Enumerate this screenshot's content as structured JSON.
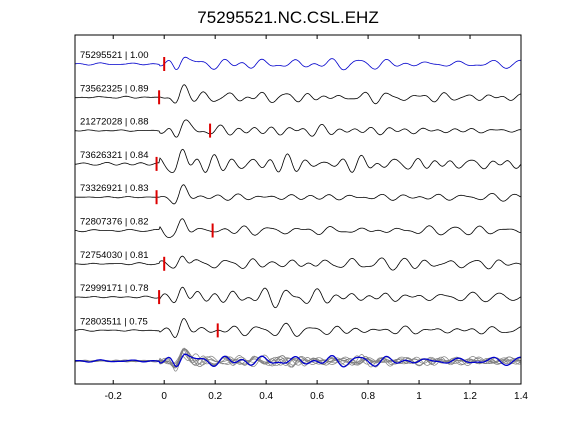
{
  "chart_data": {
    "type": "line",
    "title": "75295521.NC.CSL.EHZ",
    "xlabel": "",
    "ylabel": "",
    "xlim": [
      -0.35,
      1.4
    ],
    "xticks": [
      -0.2,
      0,
      0.2,
      0.4,
      0.6,
      0.8,
      1,
      1.2,
      1.4
    ],
    "xtick_labels": [
      "-0.2",
      "0",
      "0.2",
      "0.4",
      "0.6",
      "0.8",
      "1",
      "1.2",
      "1.4"
    ],
    "grid": false,
    "legend": "none",
    "reference_color": "#0000cc",
    "trace_color": "#000000",
    "stack_color": "#808080",
    "pick_color": "#dd0000",
    "traces": [
      {
        "label": "75295521 | 1.00",
        "pick": 0.0,
        "reference": true
      },
      {
        "label": "73562325 | 0.89",
        "pick": -0.02,
        "reference": false
      },
      {
        "label": "21272028 | 0.88",
        "pick": 0.18,
        "reference": false
      },
      {
        "label": "73626321 | 0.84",
        "pick": -0.03,
        "reference": false
      },
      {
        "label": "73326921 | 0.83",
        "pick": -0.03,
        "reference": false
      },
      {
        "label": "72807376 | 0.82",
        "pick": 0.19,
        "reference": false
      },
      {
        "label": "72754030 | 0.81",
        "pick": 0.0,
        "reference": false
      },
      {
        "label": "72999171 | 0.78",
        "pick": -0.02,
        "reference": false
      },
      {
        "label": "72803511 | 0.75",
        "pick": 0.21,
        "reference": false
      }
    ]
  }
}
